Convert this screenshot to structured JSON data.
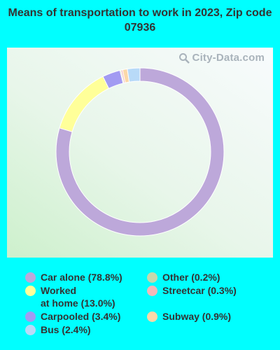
{
  "title": "Means of transportation to work in 2023, Zip code 07936",
  "watermark": "City-Data.com",
  "chart_data": {
    "type": "pie",
    "donut": true,
    "title": "Means of transportation to work in 2023, Zip code 07936",
    "legend_position": "bottom",
    "slices": [
      {
        "label": "Car alone (78.8%)",
        "value": 78.8,
        "color": "#BDA8DA"
      },
      {
        "label": "Worked at home (13.0%)",
        "label_lines": [
          "Worked",
          "at home (13.0%)"
        ],
        "value": 13.0,
        "color": "#FFFF99"
      },
      {
        "label": "Carpooled (3.4%)",
        "value": 3.4,
        "color": "#A29BF2"
      },
      {
        "label": "Other (0.2%)",
        "value": 0.2,
        "color": "#C6D8AD"
      },
      {
        "label": "Streetcar (0.3%)",
        "value": 0.3,
        "color": "#F4B8B8"
      },
      {
        "label": "Subway (0.9%)",
        "value": 0.9,
        "color": "#FBD8A8"
      },
      {
        "label": "Bus (2.4%)",
        "value": 2.4,
        "color": "#B8DAF8"
      }
    ]
  }
}
